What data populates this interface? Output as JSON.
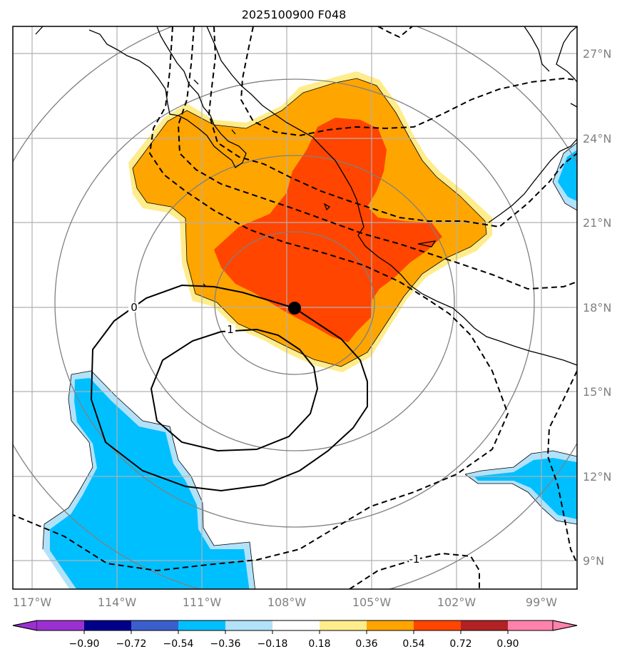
{
  "title": "2025100900 F048",
  "map": {
    "lon_labels": [
      "117°W",
      "114°W",
      "111°W",
      "108°W",
      "105°W",
      "102°W",
      "99°W"
    ],
    "lat_labels": [
      "27°N",
      "24°N",
      "21°N",
      "18°N",
      "15°N",
      "12°N",
      "9°N"
    ],
    "center_marker": {
      "lon": -107.7,
      "lat": 18.0
    },
    "contour_labels": [
      "0",
      "1",
      "-1"
    ]
  },
  "colorbar": {
    "labels": [
      "−0.90",
      "−0.72",
      "−0.54",
      "−0.36",
      "−0.18",
      "0.18",
      "0.36",
      "0.54",
      "0.72",
      "0.90"
    ],
    "colors": [
      "#9b30d0",
      "#00008b",
      "#3a5fcd",
      "#00bfff",
      "#b2e2fa",
      "#ffffff",
      "#ffec8b",
      "#ffa500",
      "#ff4500",
      "#b22222",
      "#ff82ab"
    ]
  },
  "colors": {
    "positive_light": "#ffec8b",
    "positive_mid": "#ffa500",
    "positive_high": "#ff4500",
    "negative_light": "#b2e2fa",
    "negative_mid": "#00bfff",
    "grid": "#b0b0b0",
    "range_rings": "#808080"
  }
}
